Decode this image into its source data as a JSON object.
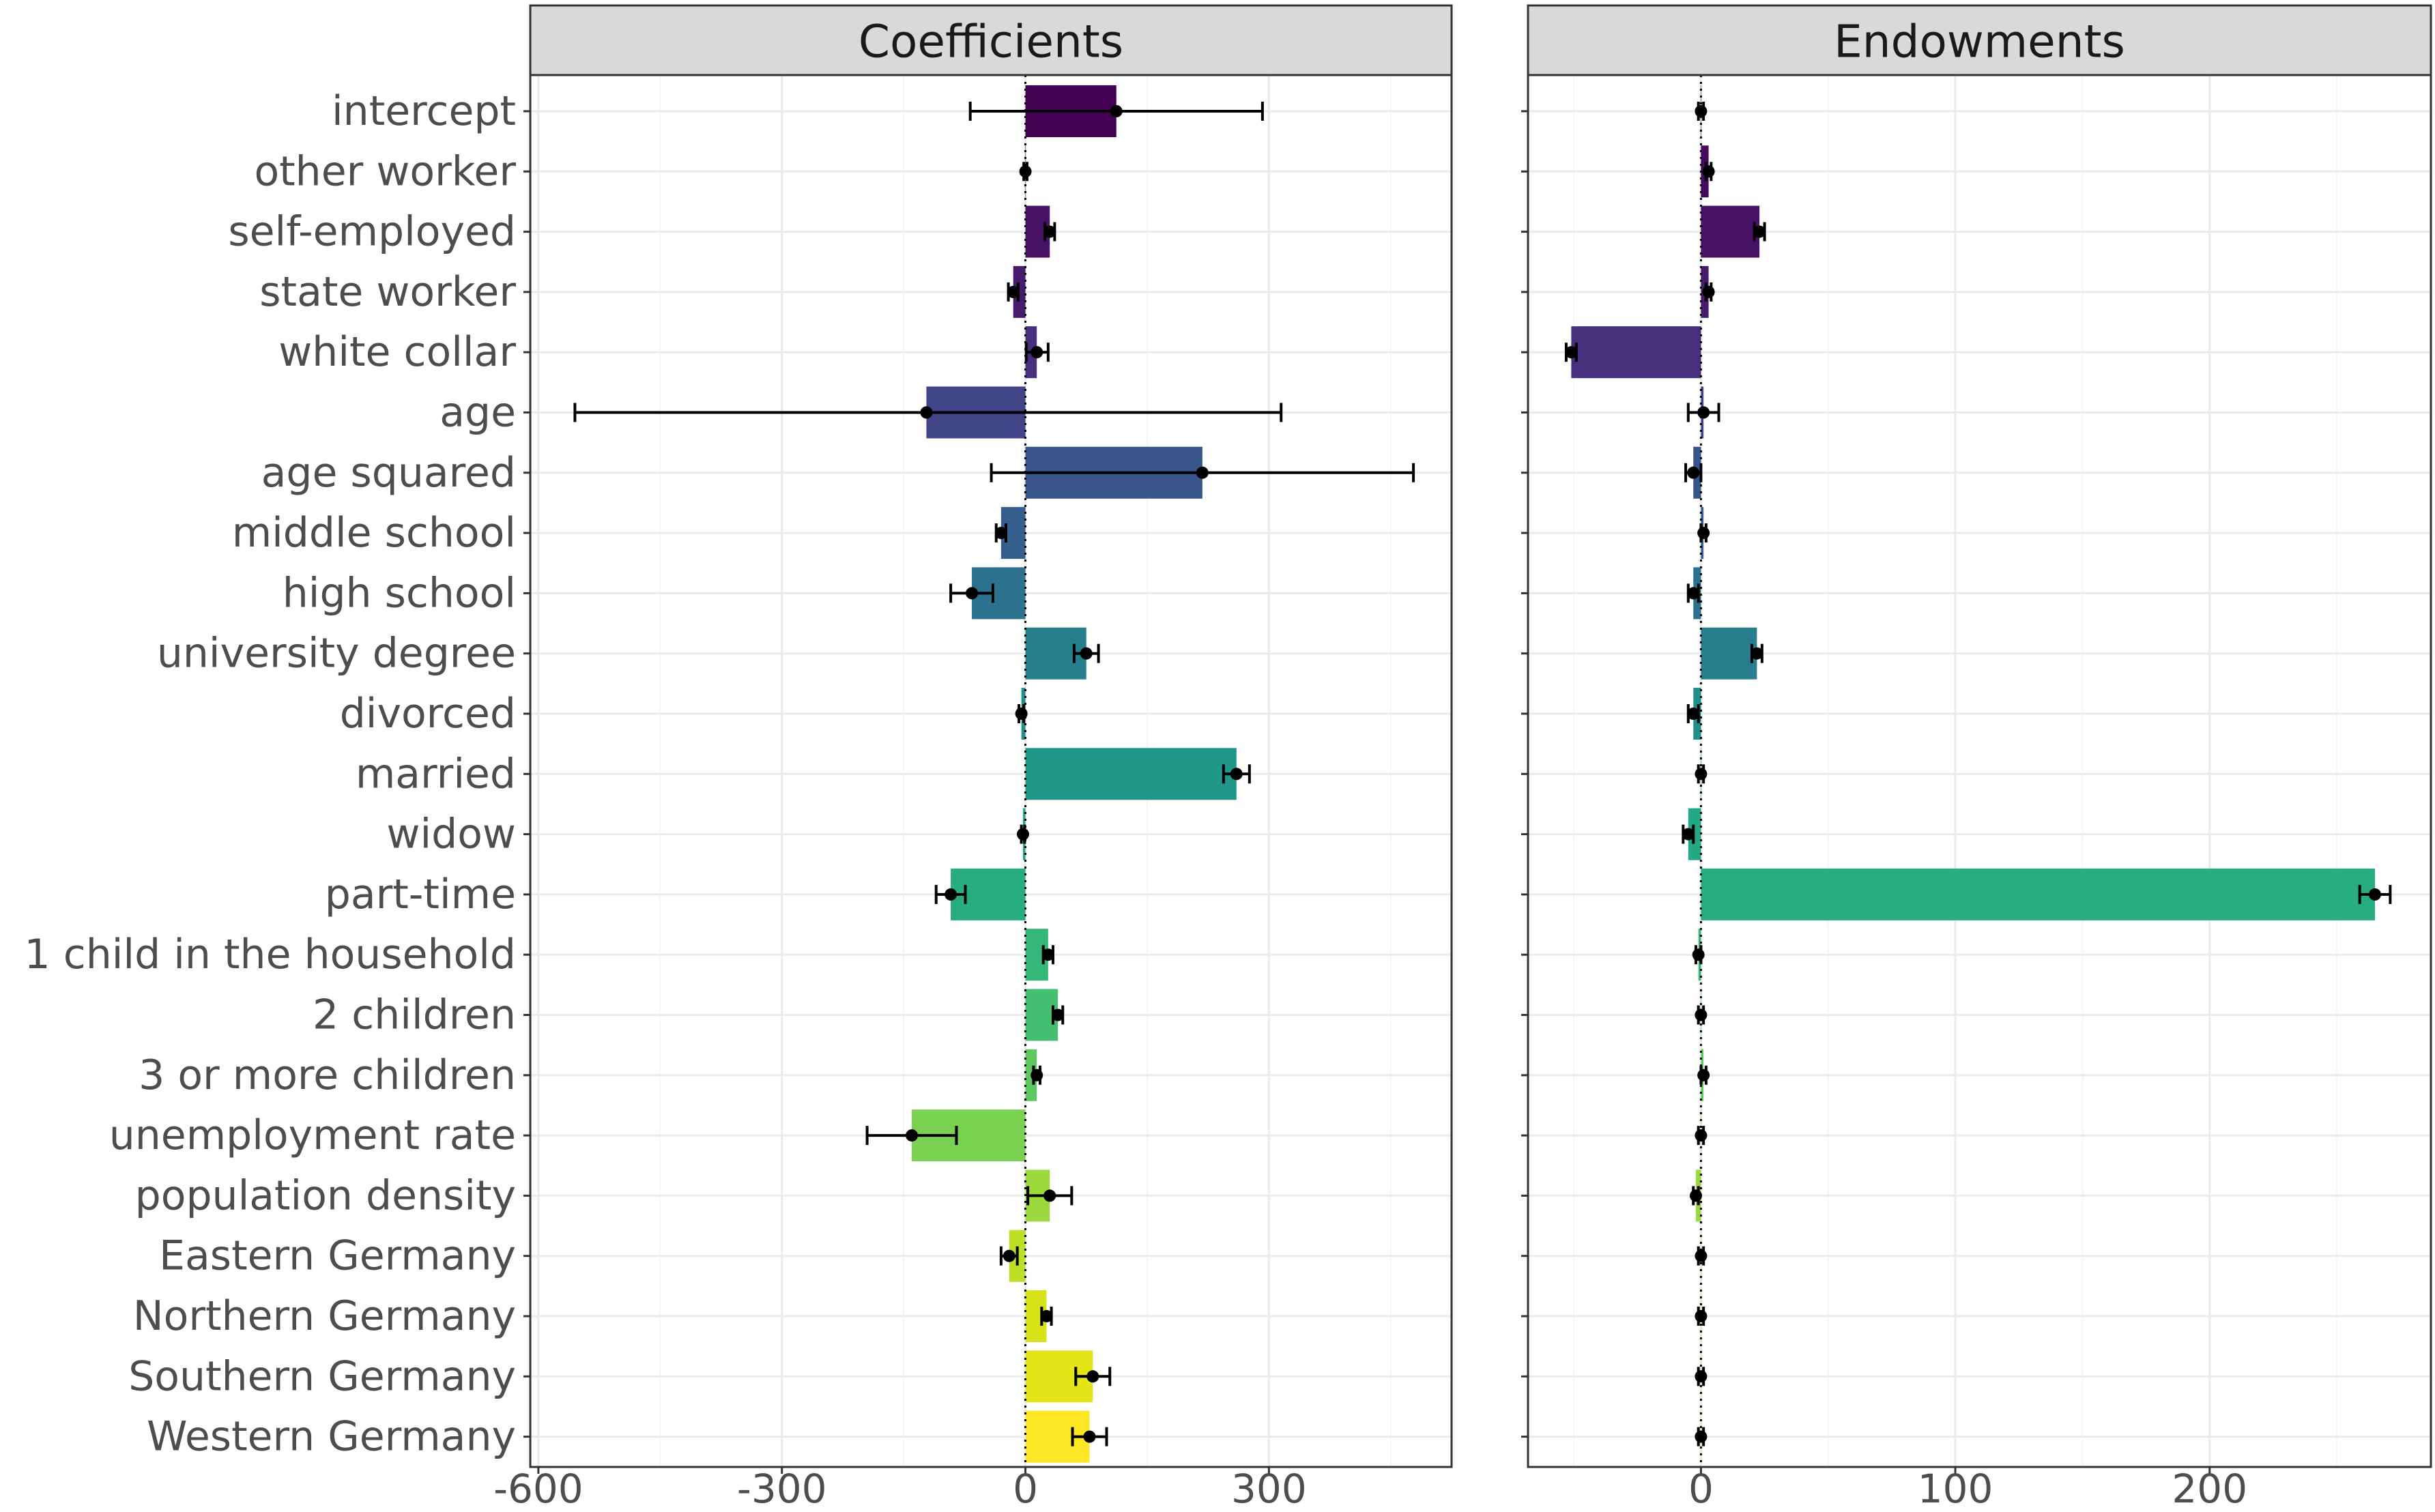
{
  "chart_data": [
    {
      "type": "bar",
      "title": "Coefficients",
      "orientation": "horizontal",
      "xlim": [
        -610,
        525
      ],
      "x_ticks": [
        -600,
        -300,
        0,
        300
      ],
      "x_tick_labels": [
        "-600",
        "-300",
        "0",
        "300"
      ],
      "grid": true,
      "reference_line": 0,
      "categories": [
        "intercept",
        "other worker",
        "self-employed",
        "state worker",
        "white collar",
        "age",
        "age squared",
        "middle school",
        "high school",
        "university degree",
        "divorced",
        "married",
        "widow",
        "part-time",
        "1 child in the household",
        "2 children",
        "3 or more children",
        "unemployment rate",
        "population density",
        "Eastern Germany",
        "Northern Germany",
        "Southern Germany",
        "Western Germany"
      ],
      "values": [
        112,
        0,
        30,
        -15,
        14,
        -122,
        218,
        -30,
        -66,
        75,
        -5,
        260,
        -3,
        -92,
        28,
        40,
        14,
        -140,
        30,
        -20,
        26,
        83,
        79
      ],
      "error_low": [
        -68,
        -2,
        24,
        -21,
        1,
        -555,
        -42,
        -36,
        -92,
        60,
        -8,
        244,
        -5,
        -110,
        22,
        34,
        10,
        -195,
        3,
        -30,
        20,
        62,
        58
      ],
      "error_high": [
        292,
        2,
        36,
        -9,
        28,
        315,
        478,
        -24,
        -40,
        90,
        -2,
        276,
        -1,
        -74,
        34,
        46,
        18,
        -85,
        57,
        -10,
        32,
        104,
        100
      ]
    },
    {
      "type": "bar",
      "title": "Endowments",
      "orientation": "horizontal",
      "xlim": [
        -68,
        287
      ],
      "x_ticks": [
        0,
        100,
        200
      ],
      "x_tick_labels": [
        "0",
        "100",
        "200"
      ],
      "grid": true,
      "reference_line": 0,
      "categories": [
        "intercept",
        "other worker",
        "self-employed",
        "state worker",
        "white collar",
        "age",
        "age squared",
        "middle school",
        "high school",
        "university degree",
        "divorced",
        "married",
        "widow",
        "part-time",
        "1 child in the household",
        "2 children",
        "3 or more children",
        "unemployment rate",
        "population density",
        "Eastern Germany",
        "Northern Germany",
        "Southern Germany",
        "Western Germany"
      ],
      "values": [
        0,
        3,
        23,
        3,
        -51,
        1,
        -3,
        1,
        -3,
        22,
        -3,
        0,
        -5,
        265,
        -1,
        0,
        1,
        0,
        -2,
        0,
        0,
        0,
        0
      ],
      "error_low": [
        -1,
        2,
        21,
        2,
        -53,
        -5,
        -6,
        0,
        -5,
        20,
        -5,
        -1,
        -7,
        259,
        -2,
        -1,
        0,
        -1,
        -3,
        -1,
        -1,
        -1,
        -1
      ],
      "error_high": [
        1,
        4,
        25,
        4,
        -49,
        7,
        0,
        2,
        -1,
        24,
        -1,
        1,
        -3,
        271,
        0,
        1,
        2,
        1,
        -1,
        1,
        1,
        1,
        1
      ]
    }
  ],
  "colors": {
    "bars": [
      "#440154",
      "#46085c",
      "#471164",
      "#481a6c",
      "#472f7d",
      "#414487",
      "#39568c",
      "#355f8d",
      "#2c728e",
      "#277f8e",
      "#21908d",
      "#1f988b",
      "#22a884",
      "#27ad81",
      "#35b779",
      "#44bf70",
      "#5ec962",
      "#7ad151",
      "#9bd93c",
      "#bddf26",
      "#d8e219",
      "#e4e419",
      "#fde725"
    ],
    "strip_fill": "#d9d9d9",
    "panel_border": "#333333",
    "grid_major": "#ebebeb",
    "grid_minor": "#f5f5f5",
    "axis_text": "#4d4d4d",
    "point": "#000000"
  }
}
